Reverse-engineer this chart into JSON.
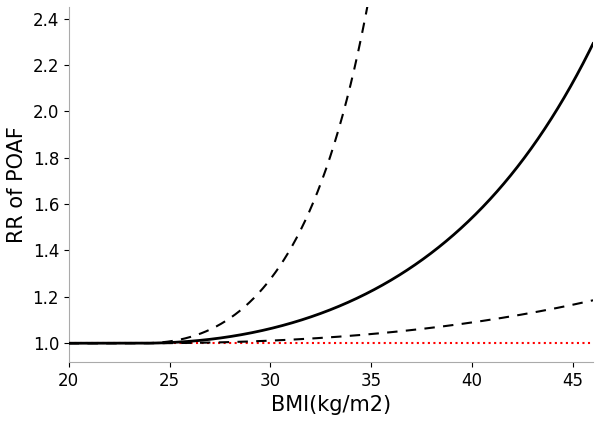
{
  "xlim": [
    20,
    46
  ],
  "ylim": [
    0.92,
    2.45
  ],
  "yticks": [
    1.0,
    1.2,
    1.4,
    1.6,
    1.8,
    2.0,
    2.2,
    2.4
  ],
  "xticks": [
    20,
    25,
    30,
    35,
    40,
    45
  ],
  "xlabel": "BMI(kg/m2)",
  "ylabel": "RR of POAF",
  "ref_line_y": 1.0,
  "ref_color": "#ff0000",
  "curve_color": "#000000",
  "knot_bmi": 23.5,
  "background_color": "#ffffff",
  "xlabel_fontsize": 15,
  "ylabel_fontsize": 15,
  "tick_fontsize": 12,
  "main_k": 0.0012,
  "main_p": 2.1,
  "upper_k": 0.003,
  "upper_p": 2.35,
  "lower_k": 0.00018,
  "lower_p": 2.2
}
